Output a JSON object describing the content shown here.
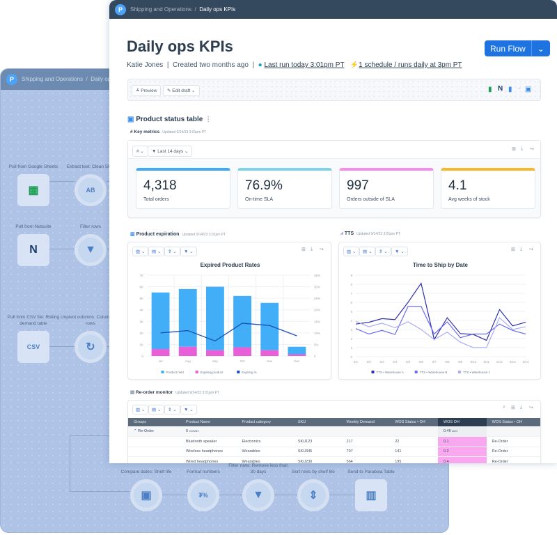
{
  "background_flow": {
    "breadcrumb": [
      "Shipping and Operations",
      "Daily ops KPIs"
    ],
    "nodes": [
      {
        "label": "Pull from Google Sheets",
        "icon": "google-sheets-icon"
      },
      {
        "label": "Extract text: Clean SKU",
        "icon": "text-extract-icon"
      },
      {
        "label": "Pull from Netsuite",
        "icon": "netsuite-icon"
      },
      {
        "label": "Filter rows",
        "icon": "filter-icon"
      },
      {
        "label": "Pull from CSV file: Rolling demand table",
        "icon": "csv-file-icon",
        "badge": "CSV"
      },
      {
        "label": "Unpivot columns: Columns as rows",
        "icon": "unpivot-icon"
      },
      {
        "label": "Compare dates: Shelf life",
        "icon": "calendar-icon"
      },
      {
        "label": "Format numbers",
        "icon": "format-numbers-icon"
      },
      {
        "label": "Filter rows: Remove less than 30 days",
        "icon": "filter-icon"
      },
      {
        "label": "Sort rows by shelf life",
        "icon": "sort-icon"
      },
      {
        "label": "Send to Parabola Table",
        "icon": "table-icon"
      }
    ]
  },
  "header": {
    "breadcrumb_parent": "Shipping and Operations",
    "breadcrumb_sep": "/",
    "breadcrumb_current": "Daily ops KPIs"
  },
  "page": {
    "title": "Daily ops KPIs",
    "owner": "Katie Jones",
    "created": "Created two months ago",
    "last_run": "Last run today 3:01pm PT",
    "schedule": "1 schedule / runs daily at 3pm PT",
    "run_label": "Run Flow"
  },
  "toolbar": {
    "preview": "Preview",
    "edit": "Edit draft"
  },
  "section": {
    "title": "Product status table"
  },
  "key_metrics": {
    "title": "Key metrics",
    "updated": "Updated 9/14/23 3:01pm PT",
    "filter": "Last 14 days",
    "tiles": [
      {
        "value": "4,318",
        "label": "Total orders",
        "color": "#3fa9f5"
      },
      {
        "value": "76.9%",
        "label": "On-time SLA",
        "color": "#7fd3e8"
      },
      {
        "value": "997",
        "label": "Orders outside of SLA",
        "color": "#f48fe8"
      },
      {
        "value": "4.1",
        "label": "Avg weeks of stock",
        "color": "#f5b82e"
      }
    ]
  },
  "expiration": {
    "title": "Product expiration",
    "updated": "Updated 9/14/23 3:01pm PT"
  },
  "tts": {
    "title": "TTS",
    "updated": "Updated 9/14/23 3:01pm PT"
  },
  "chart_data": [
    {
      "type": "bar",
      "title": "Expired Product Rates",
      "categories": [
        "Jul",
        "Aug",
        "Sep",
        "Oct",
        "Nov",
        "Dec"
      ],
      "yticks": [
        "0",
        "1K",
        "2K",
        "3K",
        "4K",
        "5K",
        "6K",
        "7K"
      ],
      "y2ticks": [
        "0",
        "5%",
        "10%",
        "15%",
        "20%",
        "25%",
        "30%",
        "35%"
      ],
      "ylim": [
        0,
        7000
      ],
      "y2lim": [
        0,
        35
      ],
      "stacked": true,
      "series": [
        {
          "name": "Product held",
          "kind": "bar",
          "color": "#42aef7",
          "values": [
            4900,
            5000,
            5500,
            4450,
            4100,
            650
          ]
        },
        {
          "name": "Expiring product",
          "kind": "bar",
          "color": "#e85fd8",
          "values": [
            600,
            800,
            500,
            750,
            500,
            150
          ]
        },
        {
          "name": "Expiring %",
          "kind": "line",
          "axis": "right",
          "color": "#1a4fb5",
          "values": [
            10,
            11,
            6.5,
            14.2,
            13.2,
            8.7
          ]
        }
      ],
      "legend": "bottom",
      "grid": true
    },
    {
      "type": "line",
      "title": "Time to Ship by Date",
      "categories": [
        "9/1",
        "9/2",
        "9/3",
        "9/4",
        "9/5",
        "9/6",
        "9/7",
        "9/8",
        "9/9",
        "9/10",
        "9/11",
        "9/12",
        "9/13",
        "9/14"
      ],
      "yticks": [
        "0",
        "1",
        "2",
        "3",
        "4",
        "5",
        "6",
        "7",
        "8",
        "9"
      ],
      "ylim": [
        0,
        9
      ],
      "series": [
        {
          "name": "TTS • Warehouse A",
          "color": "#2e2fa8",
          "values": [
            3.6,
            3.8,
            4.2,
            4.1,
            6.0,
            8.1,
            1.9,
            4.3,
            2.55,
            2.45,
            1.8,
            5.2,
            3.4,
            3.8
          ]
        },
        {
          "name": "TTS • Warehouse B",
          "color": "#6a6cf0",
          "values": [
            3.1,
            2.5,
            2.9,
            2.45,
            5.55,
            5.55,
            2.5,
            3.85,
            2.1,
            2.5,
            2.5,
            3.6,
            2.9,
            2.5
          ]
        },
        {
          "name": "TTS • Warehouse 1",
          "color": "#a9acf7",
          "values": [
            3.9,
            3.3,
            3.7,
            3.2,
            3.85,
            3.0,
            1.9,
            2.7,
            1.6,
            1.0,
            1.0,
            4.3,
            3.0,
            3.3
          ]
        }
      ],
      "legend": "bottom",
      "grid": true
    }
  ],
  "reorder": {
    "title": "Re-order monitor",
    "updated": "Updated 9/14/23 3:01pm PT",
    "columns": [
      "Groups",
      "Product Name",
      "Product category",
      "SKU",
      "Weekly Demand",
      "WOS Status • OH",
      "WOS OH",
      "WOS Status • OH"
    ],
    "group": {
      "name": "Re-Order",
      "count": "6",
      "count_label": "COUNT",
      "avg": "0.46",
      "avg_label": "AVG"
    },
    "rows": [
      [
        "",
        "Bluetooth speaker",
        "Electronics",
        "SKU123",
        "217",
        "22",
        "0.1",
        "Re-Order"
      ],
      [
        "",
        "Wireless headphones",
        "Wearables",
        "SKU345",
        "707",
        "141",
        "0.2",
        "Re-Order"
      ],
      [
        "",
        "Wired headphones",
        "Wearables",
        "SKU230",
        "564",
        "195",
        "0.4",
        "Re-Order"
      ]
    ],
    "highlight_color": "#f9a8ef"
  }
}
